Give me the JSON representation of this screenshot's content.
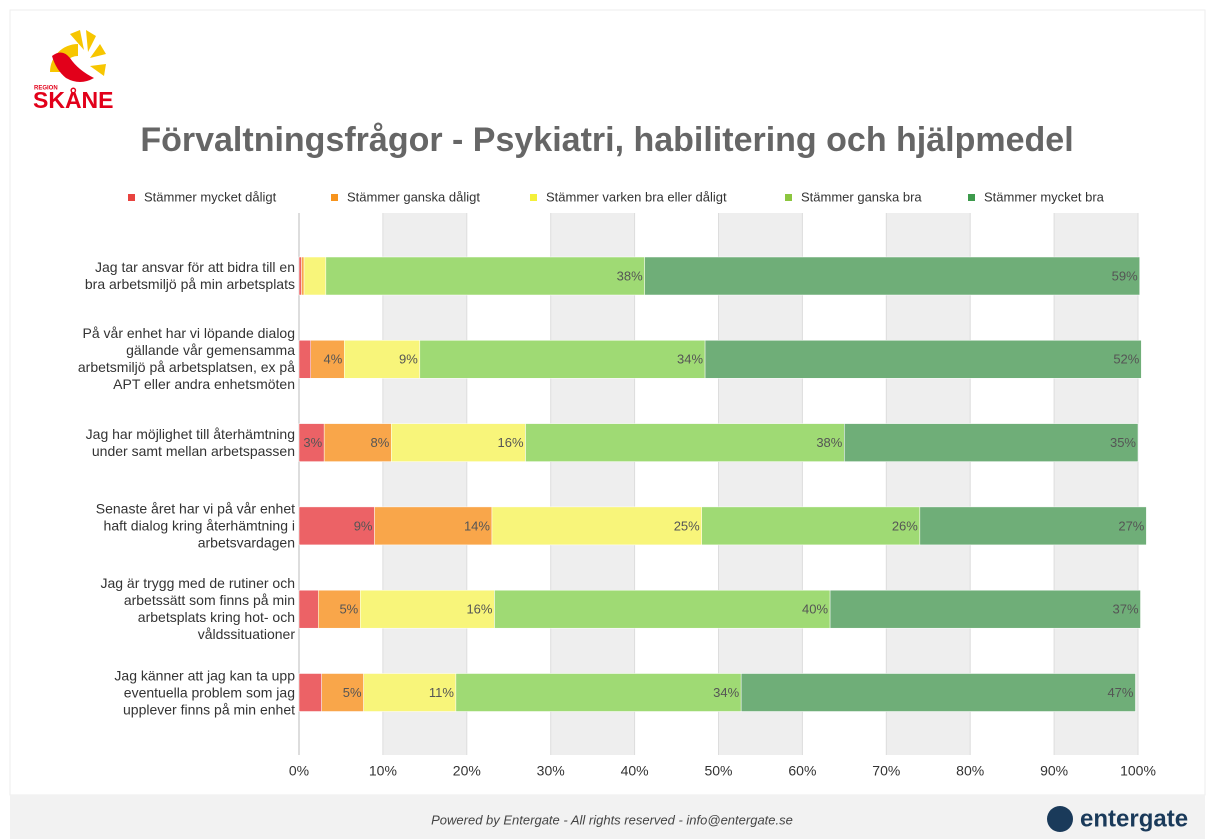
{
  "logo": {
    "region": "REGION",
    "name": "SKÅNE"
  },
  "footer": {
    "text": "Powered by Entergate  - All rights reserved - info@entergate.se",
    "brand": "entergate"
  },
  "chart_data": {
    "type": "stacked_barh",
    "title": "Förvaltningsfrågor  - Psykiatri, habilitering och hjälpmedel",
    "categories": [
      "Jag tar ansvar för att bidra till en\nbra arbetsmiljö på min arbetsplats",
      "På vår enhet har vi löpande dialog\ngällande vår gemensamma\narbetsmiljö på arbetsplatsen, ex på\nAPT eller andra enhetsmöten",
      "Jag har möjlighet till återhämtning\nunder samt mellan arbetspassen",
      "Senaste året har vi på vår enhet\nhaft dialog kring återhämtning i\narbetsvardagen",
      "Jag är trygg med de rutiner och\narbetssätt som finns på min\narbetsplats kring hot- och\nvåldssituationer",
      "Jag känner att jag kan ta upp\neventuella problem som jag\nupplever finns på min enhet"
    ],
    "series": [
      {
        "name": "Stämmer mycket dåligt",
        "color": "#ec6266",
        "legend_color": "#e8433f",
        "values": [
          0.3,
          1.4,
          3,
          9,
          2.3,
          2.7
        ],
        "value_labels": [
          null,
          null,
          "3%",
          "9%",
          null,
          null
        ]
      },
      {
        "name": "Stämmer ganska dåligt",
        "color": "#f9a64a",
        "legend_color": "#f7941d",
        "values": [
          0.3,
          4,
          8,
          14,
          5,
          5
        ],
        "value_labels": [
          null,
          "4%",
          "8%",
          "14%",
          "5%",
          "5%"
        ]
      },
      {
        "name": "Stämmer varken bra eller dåligt",
        "color": "#f8f57a",
        "legend_color": "#f4f03a",
        "values": [
          2.6,
          9,
          16,
          25,
          16,
          11
        ],
        "value_labels": [
          null,
          "9%",
          "16%",
          "25%",
          "16%",
          "11%"
        ]
      },
      {
        "name": "Stämmer ganska bra",
        "color": "#9fda74",
        "legend_color": "#8cc63f",
        "values": [
          38,
          34,
          38,
          26,
          40,
          34
        ],
        "value_labels": [
          "38%",
          "34%",
          "38%",
          "26%",
          "40%",
          "34%"
        ]
      },
      {
        "name": "Stämmer mycket bra",
        "color": "#6fae78",
        "legend_color": "#3d9a4c",
        "values": [
          59,
          52,
          35,
          27,
          37,
          47
        ],
        "value_labels": [
          "59%",
          "52%",
          "35%",
          "27%",
          "37%",
          "47%"
        ]
      }
    ],
    "xlim": [
      0,
      100
    ],
    "xticks": [
      {
        "value": 0,
        "label": "0%"
      },
      {
        "value": 10,
        "label": "10%"
      },
      {
        "value": 20,
        "label": "20%"
      },
      {
        "value": 30,
        "label": "30%"
      },
      {
        "value": 40,
        "label": "40%"
      },
      {
        "value": 50,
        "label": "50%"
      },
      {
        "value": 60,
        "label": "60%"
      },
      {
        "value": 70,
        "label": "70%"
      },
      {
        "value": 80,
        "label": "80%"
      },
      {
        "value": 90,
        "label": "90%"
      },
      {
        "value": 100,
        "label": "100%"
      }
    ],
    "legend": "top",
    "grid": "bands"
  }
}
